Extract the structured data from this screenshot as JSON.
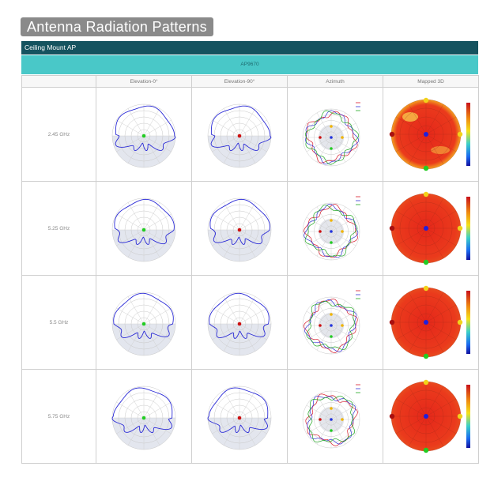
{
  "title": "Antenna Radiation Patterns",
  "section": "Ceiling Mount AP",
  "model": "AP9670",
  "columns": [
    "Elevation-0°",
    "Elevation-90°",
    "Azimuth",
    "Mapped 3D"
  ],
  "rows": [
    {
      "freq": "2.45 GHz"
    },
    {
      "freq": "5.25 GHz"
    },
    {
      "freq": "5.5 GHz"
    },
    {
      "freq": "5.75 GHz"
    }
  ],
  "legend": [
    "theta60°",
    "theta75°",
    "theta90°"
  ],
  "colors": {
    "title_bg": "#8a8a8a",
    "section_bg": "#15535f",
    "model_bg": "#49c8c8",
    "pattern_line": "#2b2bd6",
    "heatmap_hot": "#e8321c"
  }
}
